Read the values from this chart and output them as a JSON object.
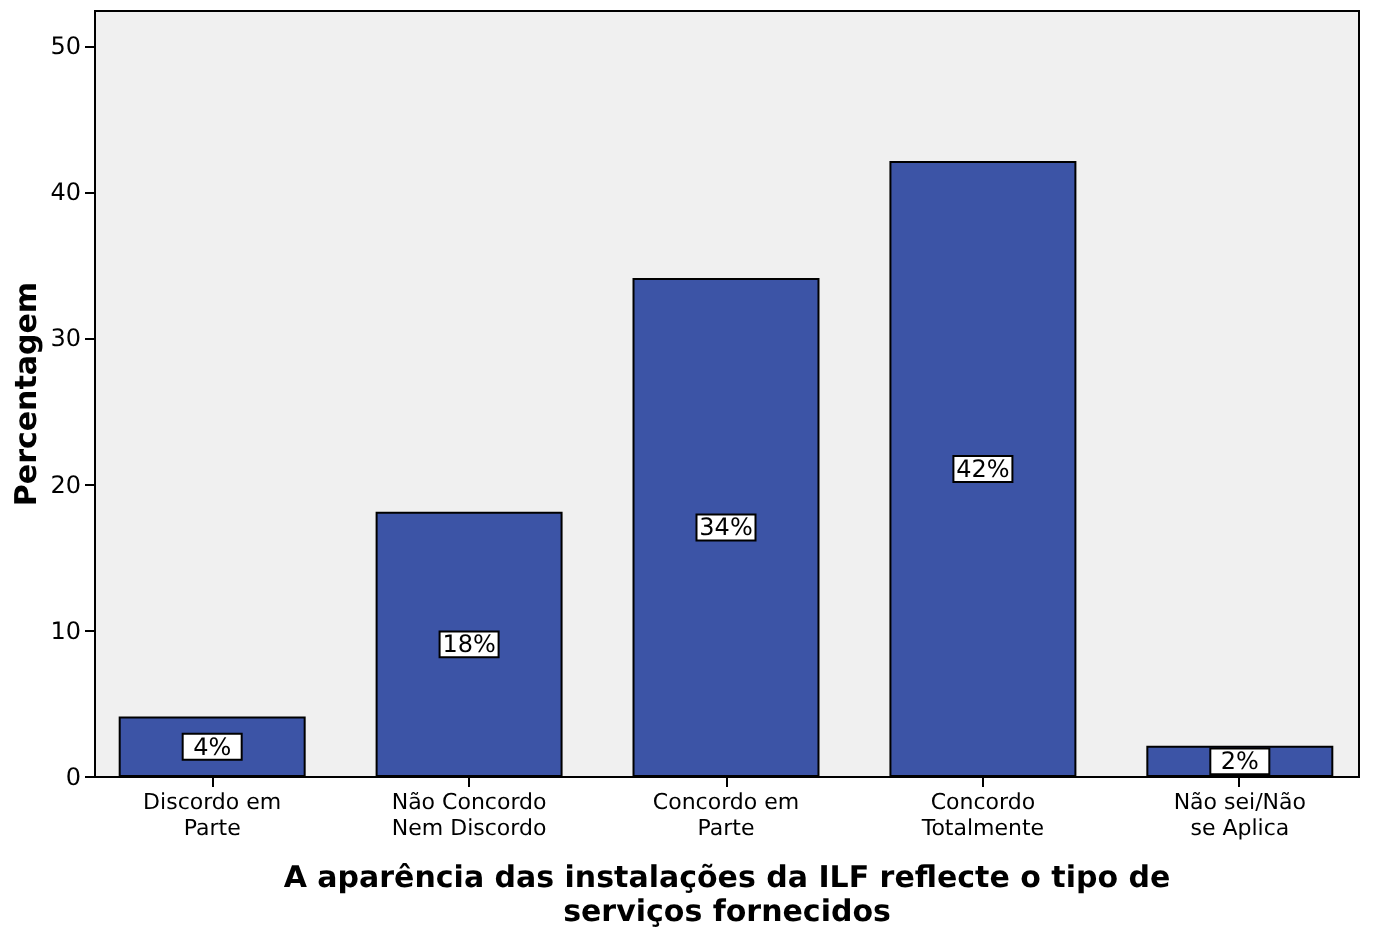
{
  "chart_data": {
    "type": "bar",
    "xlabel": "A aparência das instalações da ILF reflecte o tipo de serviços fornecidos",
    "ylabel": "Percentagem",
    "categories": [
      "Discordo em Parte",
      "Não Concordo Nem Discordo",
      "Concordo em Parte",
      "Concordo Totalmente",
      "Não sei/Não se Aplica"
    ],
    "values": [
      4,
      18,
      34,
      42,
      2
    ],
    "value_labels": [
      "4%",
      "18%",
      "34%",
      "42%",
      "2%"
    ],
    "color": "#3c54a6",
    "ylim": [
      0,
      52.4
    ],
    "yticks": [
      0,
      10,
      20,
      30,
      40,
      50
    ],
    "grid": false
  }
}
